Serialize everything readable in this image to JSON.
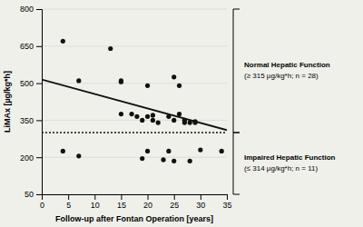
{
  "chart_data": {
    "type": "scatter",
    "xlabel": "Follow-up after Fontan Operation [years]",
    "ylabel": "LiMAx [µg/kg*h]",
    "background": "#f0f0eb",
    "grid": "y",
    "xlim": [
      0,
      35
    ],
    "ylim": [
      50,
      800
    ],
    "xticks": [
      0,
      5,
      10,
      15,
      20,
      25,
      30,
      35
    ],
    "yticks": [
      50,
      200,
      350,
      500,
      650,
      800
    ],
    "series": [
      {
        "type": "scatter",
        "color": "#111111",
        "marker": "circle",
        "x": [
          4,
          4,
          7,
          7,
          13,
          15,
          15,
          15,
          17,
          18,
          19,
          19,
          20,
          20,
          20,
          21,
          21,
          22,
          23,
          24,
          24,
          25,
          25,
          25,
          26,
          26,
          27,
          27,
          28,
          28,
          29,
          29,
          30,
          34
        ],
        "values": [
          670,
          225,
          510,
          205,
          640,
          510,
          505,
          375,
          375,
          365,
          195,
          350,
          490,
          365,
          225,
          370,
          350,
          340,
          190,
          365,
          225,
          525,
          350,
          185,
          490,
          375,
          350,
          340,
          340,
          185,
          345,
          340,
          230,
          225
        ]
      },
      {
        "type": "line",
        "color": "#111111",
        "line_style": "solid",
        "x": [
          0,
          35
        ],
        "values": [
          515,
          310
        ]
      }
    ],
    "reference_line": {
      "value": 300,
      "color": "#111111",
      "line_style": "dotted"
    },
    "annotations": [
      {
        "title": "Normal Hepatic Function",
        "text": "(≥ 315 µg/kg*h; n = 28)"
      },
      {
        "title": "Impaired Hepatic Function",
        "text": "(≤ 314 µg/kg*h; n = 11)"
      }
    ]
  }
}
